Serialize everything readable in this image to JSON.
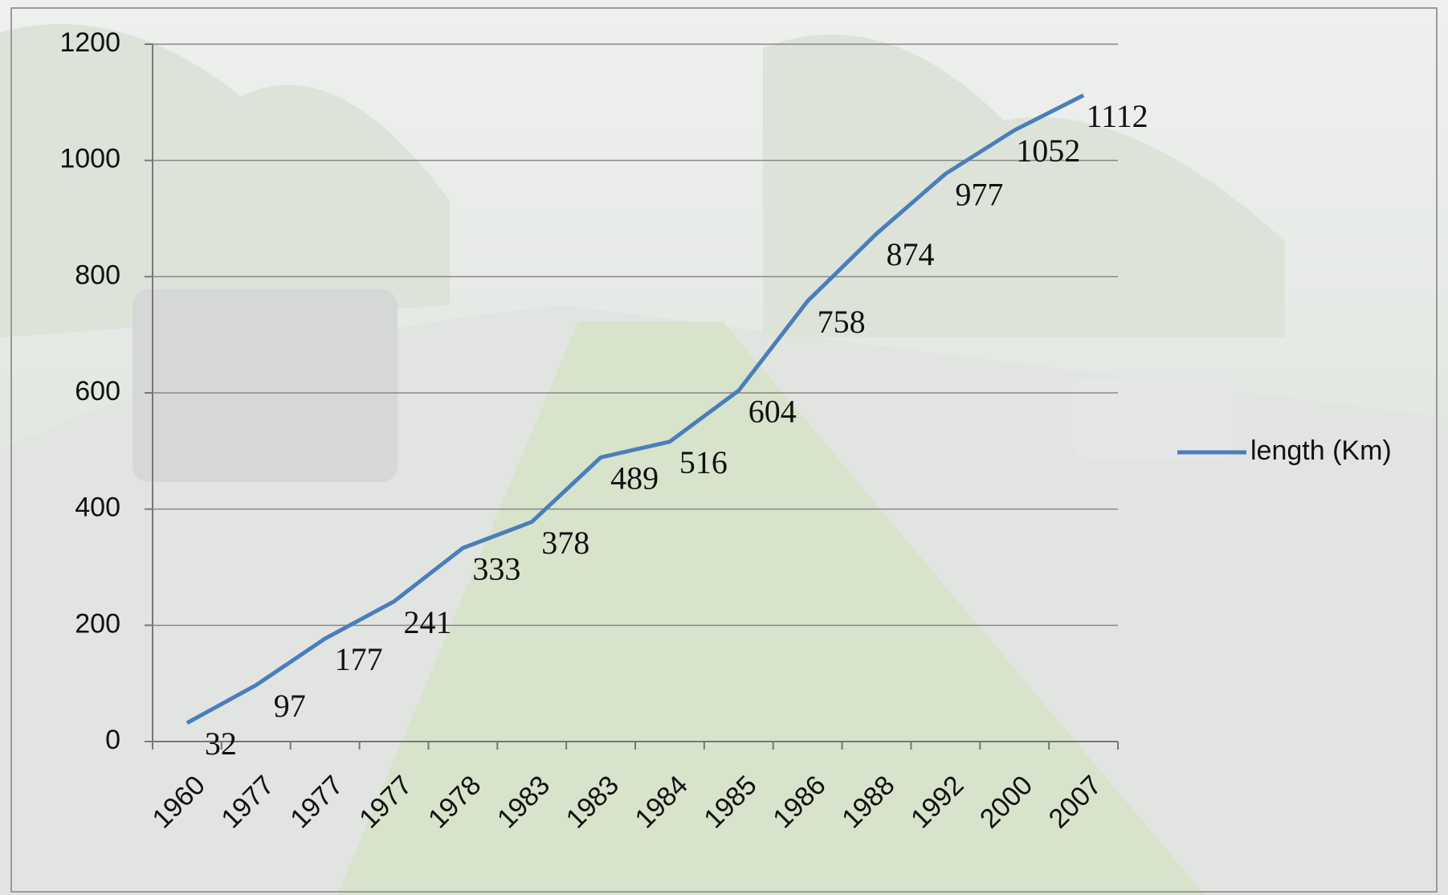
{
  "chart_data": {
    "type": "line",
    "categories": [
      "1960",
      "1977",
      "1977",
      "1977",
      "1978",
      "1983",
      "1983",
      "1984",
      "1985",
      "1986",
      "1988",
      "1992",
      "2000",
      "2007"
    ],
    "series": [
      {
        "name": "length (Km)",
        "color": "#4a7ebb",
        "values": [
          32,
          97,
          177,
          241,
          333,
          378,
          489,
          516,
          604,
          758,
          874,
          977,
          1052,
          1112
        ]
      }
    ],
    "ylim": [
      0,
      1200
    ],
    "yticks": [
      0,
      200,
      400,
      600,
      800,
      1000,
      1200
    ],
    "grid": true,
    "legend": "right"
  }
}
